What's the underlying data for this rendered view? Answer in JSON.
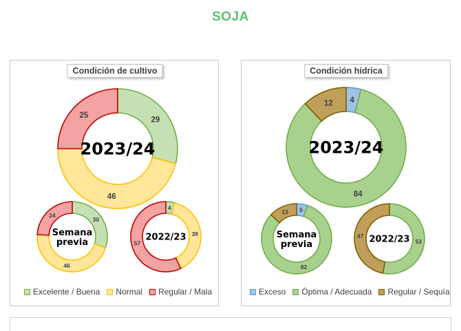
{
  "page_title": "SOJA",
  "chart_data": [
    {
      "type": "donut",
      "title": "Condición  de cultivo",
      "legend": [
        "Excelente / Buena",
        "Normal",
        "Regular / Mala"
      ],
      "colors": {
        "fill": [
          "#c5e0b3",
          "#ffe699",
          "#f4a3a3"
        ],
        "stroke": [
          "#70ad47",
          "#ffc000",
          "#c00000"
        ]
      },
      "rings": [
        {
          "label": "2023/24",
          "values": [
            29,
            46,
            25
          ]
        },
        {
          "label_lines": [
            "Semana",
            "previa"
          ],
          "values": [
            30,
            46,
            24
          ]
        },
        {
          "label": "2022/23",
          "values": [
            4,
            39,
            57
          ]
        }
      ]
    },
    {
      "type": "donut",
      "title": "Condición  hídrica",
      "legend": [
        "Exceso",
        "Óptima / Adecuada",
        "Regular / Sequía"
      ],
      "colors": {
        "fill": [
          "#9dc3e6",
          "#a9d18e",
          "#bf9f5a"
        ],
        "stroke": [
          "#5b9bd5",
          "#70ad47",
          "#7f6000"
        ]
      },
      "rings": [
        {
          "label": "2023/24",
          "values": [
            4,
            84,
            12
          ]
        },
        {
          "label_lines": [
            "Semana",
            "previa"
          ],
          "values": [
            5,
            82,
            13
          ]
        },
        {
          "label": "2022/23",
          "values": [
            0,
            53,
            47
          ]
        }
      ]
    }
  ]
}
